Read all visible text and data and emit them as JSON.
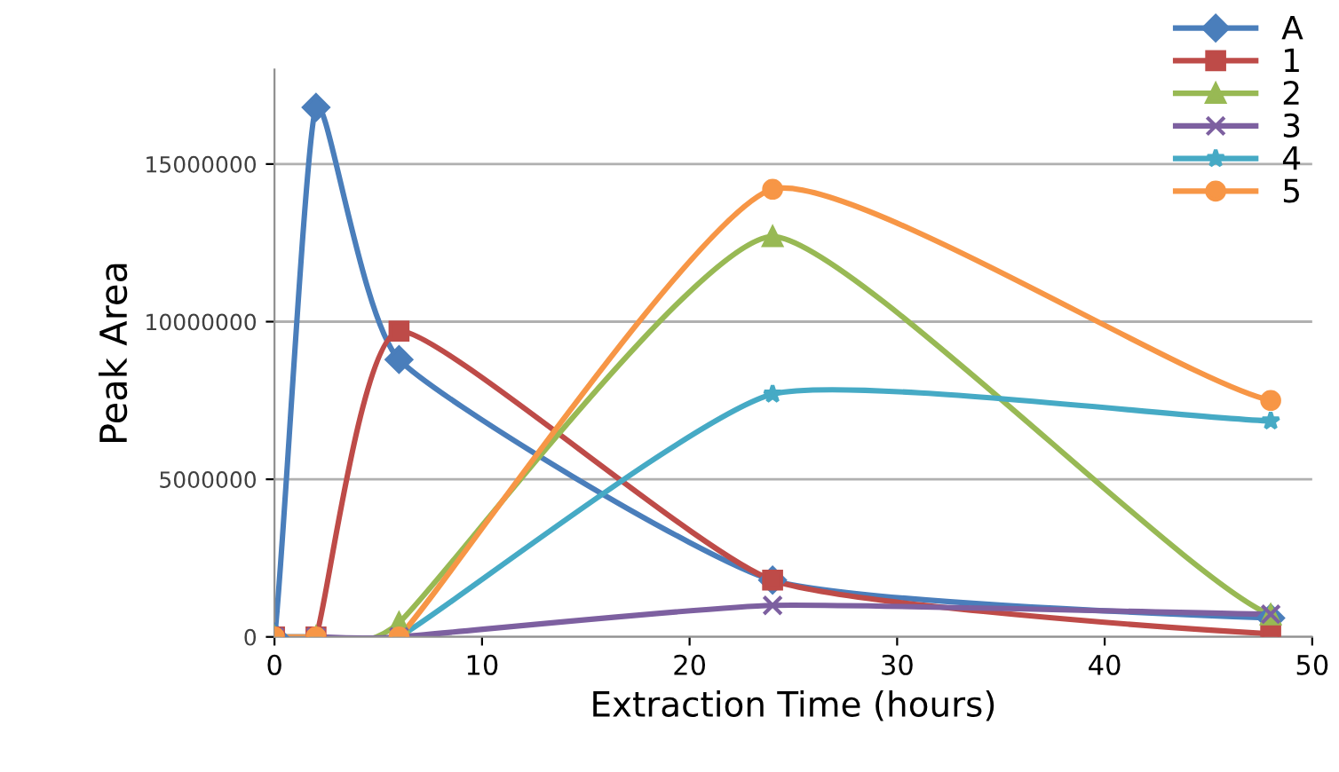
{
  "chart_data": {
    "type": "line",
    "xlabel": "Extraction Time (hours)",
    "ylabel": "Peak Area",
    "x": [
      0,
      2,
      6,
      24,
      48
    ],
    "series": [
      {
        "name": "A",
        "color": "#4a7ebb",
        "marker": "diamond",
        "values": [
          0,
          16800000,
          8800000,
          1800000,
          600000
        ]
      },
      {
        "name": "1",
        "color": "#be4b48",
        "marker": "square",
        "values": [
          0,
          0,
          9700000,
          1800000,
          100000
        ]
      },
      {
        "name": "2",
        "color": "#98b954",
        "marker": "triangle",
        "values": [
          0,
          0,
          450000,
          12700000,
          700000
        ]
      },
      {
        "name": "3",
        "color": "#7d60a0",
        "marker": "cross",
        "values": [
          0,
          0,
          0,
          1000000,
          720000
        ]
      },
      {
        "name": "4",
        "color": "#46aac5",
        "marker": "star",
        "values": [
          0,
          0,
          0,
          7700000,
          6850000
        ]
      },
      {
        "name": "5",
        "color": "#f79646",
        "marker": "circle",
        "values": [
          0,
          0,
          0,
          14200000,
          7500000
        ]
      }
    ],
    "xlim": [
      0,
      50
    ],
    "xticks": [
      0,
      10,
      20,
      30,
      40,
      50
    ],
    "ylim": [
      0,
      18000000
    ],
    "yticks": [
      0,
      5000000,
      10000000,
      15000000
    ],
    "grid": "y",
    "legend": "top right"
  }
}
